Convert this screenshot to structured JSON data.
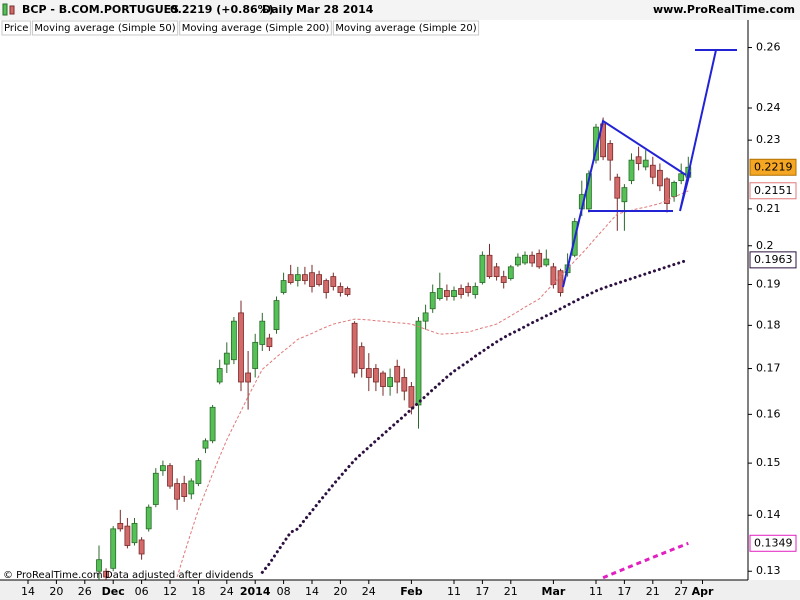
{
  "chart_data": {
    "type": "candlestick",
    "title": "BCP - B.COM.PORTUGUES",
    "subtitle": "0.2219 (+0.86%)",
    "period": "Daily",
    "date": "Mar 28 2014",
    "source": "www.ProRealTime.com",
    "notes": [
      "© ProRealTime.com",
      "Data adjusted after dividends"
    ],
    "log_scale": true,
    "grid": false,
    "ylim": [
      0.1285,
      0.264
    ],
    "yticks": [
      0.13,
      0.14,
      0.15,
      0.16,
      0.17,
      0.18,
      0.19,
      0.2,
      0.21,
      0.23,
      0.24,
      0.26
    ],
    "categories": [
      "14",
      null,
      null,
      null,
      "20",
      null,
      null,
      null,
      "26",
      null,
      null,
      null,
      "Dec",
      null,
      null,
      null,
      "06",
      null,
      null,
      null,
      "12",
      null,
      null,
      null,
      "18",
      null,
      null,
      null,
      "24",
      null,
      null,
      null,
      "2014",
      null,
      null,
      null,
      "08",
      null,
      null,
      null,
      "14",
      null,
      null,
      null,
      "20",
      null,
      null,
      null,
      "24",
      null,
      null,
      null,
      null,
      null,
      "Feb",
      null,
      null,
      null,
      null,
      null,
      "11",
      null,
      null,
      null,
      "17",
      null,
      null,
      null,
      "21",
      null,
      null,
      null,
      null,
      null,
      "Mar",
      null,
      null,
      null,
      null,
      null,
      "11",
      null,
      null,
      null,
      "17",
      null,
      null,
      null,
      "21",
      null,
      null,
      null,
      "27",
      null,
      null,
      "Apr",
      null
    ],
    "series": [
      {
        "name": "Price",
        "up_color": "#55c055",
        "down_color": "#d36a6a",
        "last_label_color": "#f5a623",
        "open": [
          null,
          null,
          null,
          null,
          null,
          null,
          null,
          null,
          null,
          null,
          0.13,
          0.13,
          0.1305,
          0.1385,
          0.138,
          0.135,
          0.1355,
          0.1375,
          0.142,
          0.1485,
          0.1495,
          0.146,
          0.146,
          0.144,
          0.146,
          0.153,
          0.1545,
          0.167,
          0.171,
          0.172,
          0.183,
          0.169,
          0.17,
          0.1755,
          0.177,
          0.179,
          0.188,
          0.1925,
          0.191,
          0.1925,
          0.193,
          0.1925,
          0.191,
          0.192,
          0.1895,
          0.189,
          0.1805,
          0.175,
          0.17,
          0.17,
          0.169,
          0.166,
          0.1705,
          0.168,
          0.166,
          0.162,
          0.181,
          0.184,
          0.1865,
          0.1885,
          0.187,
          0.189,
          0.1895,
          0.1875,
          0.1905,
          0.1975,
          0.1945,
          0.192,
          0.1915,
          0.195,
          0.1955,
          0.1975,
          0.198,
          0.195,
          0.1945,
          0.1935,
          0.193,
          0.1975,
          0.21,
          0.21,
          0.224,
          0.235,
          0.229,
          0.219,
          0.212,
          0.218,
          0.225,
          0.222,
          0.2225,
          0.221,
          0.2185,
          0.2135,
          0.218,
          0.219,
          null,
          null,
          null
        ],
        "high": [
          null,
          null,
          null,
          null,
          null,
          null,
          null,
          null,
          null,
          null,
          0.1345,
          0.1305,
          0.138,
          0.141,
          0.1395,
          0.1395,
          0.136,
          0.142,
          0.149,
          0.1505,
          0.15,
          0.147,
          0.1475,
          0.147,
          0.151,
          0.155,
          0.162,
          0.172,
          0.176,
          0.182,
          0.186,
          0.174,
          0.178,
          0.183,
          0.178,
          0.187,
          0.193,
          0.195,
          0.1945,
          0.1945,
          0.195,
          0.1935,
          0.1915,
          0.193,
          0.1905,
          0.1895,
          0.181,
          0.176,
          0.1735,
          0.171,
          0.1695,
          0.17,
          0.172,
          0.17,
          0.167,
          0.182,
          0.185,
          0.19,
          0.193,
          0.19,
          0.1895,
          0.19,
          0.1905,
          0.1905,
          0.1985,
          0.2005,
          0.1955,
          0.1935,
          0.195,
          0.198,
          0.1985,
          0.1985,
          0.199,
          0.199,
          0.1955,
          0.194,
          0.198,
          0.2075,
          0.218,
          0.221,
          0.235,
          0.237,
          0.23,
          0.22,
          0.217,
          0.226,
          0.228,
          0.227,
          0.225,
          0.223,
          0.219,
          0.218,
          0.223,
          0.225,
          null,
          null,
          null
        ],
        "low": [
          null,
          null,
          null,
          null,
          null,
          null,
          null,
          null,
          null,
          null,
          0.1285,
          0.1285,
          0.13,
          0.137,
          0.134,
          0.1345,
          0.132,
          0.137,
          0.1415,
          0.1475,
          0.145,
          0.141,
          0.1425,
          0.143,
          0.1455,
          0.152,
          0.154,
          0.1665,
          0.169,
          0.171,
          0.165,
          0.161,
          0.168,
          0.174,
          0.174,
          0.178,
          0.1875,
          0.19,
          0.1895,
          0.19,
          0.188,
          0.1895,
          0.1865,
          0.1885,
          0.187,
          0.187,
          0.168,
          0.168,
          0.165,
          0.165,
          0.164,
          0.164,
          0.1645,
          0.163,
          0.16,
          0.157,
          0.179,
          0.183,
          0.186,
          0.186,
          0.186,
          0.1865,
          0.187,
          0.1865,
          0.19,
          0.1915,
          0.191,
          0.189,
          0.191,
          0.1945,
          0.195,
          0.1945,
          0.194,
          0.1945,
          0.189,
          0.187,
          0.192,
          0.197,
          0.208,
          0.209,
          0.223,
          0.224,
          0.218,
          0.204,
          0.204,
          0.217,
          0.221,
          0.221,
          0.217,
          0.215,
          0.209,
          0.212,
          0.217,
          0.218,
          null,
          null,
          null
        ],
        "close": [
          null,
          null,
          null,
          null,
          null,
          null,
          null,
          null,
          null,
          null,
          0.132,
          0.129,
          0.1375,
          0.1375,
          0.1345,
          0.1385,
          0.133,
          0.1415,
          0.148,
          0.1495,
          0.1455,
          0.143,
          0.1435,
          0.1465,
          0.1505,
          0.1545,
          0.1615,
          0.17,
          0.1735,
          0.181,
          0.167,
          0.167,
          0.176,
          0.181,
          0.175,
          0.186,
          0.191,
          0.1905,
          0.1925,
          0.191,
          0.1895,
          0.19,
          0.188,
          0.1895,
          0.188,
          0.1875,
          0.169,
          0.17,
          0.168,
          0.167,
          0.166,
          0.168,
          0.167,
          0.165,
          0.1615,
          0.181,
          0.183,
          0.188,
          0.189,
          0.187,
          0.1885,
          0.1875,
          0.188,
          0.1895,
          0.1975,
          0.192,
          0.192,
          0.1905,
          0.1945,
          0.197,
          0.1975,
          0.1955,
          0.1945,
          0.1965,
          0.19,
          0.188,
          0.195,
          0.2065,
          0.214,
          0.22,
          0.234,
          0.225,
          0.224,
          0.213,
          0.216,
          0.224,
          0.223,
          0.224,
          0.219,
          0.2165,
          0.2115,
          0.2175,
          0.22,
          0.2219,
          null,
          null,
          null
        ]
      },
      {
        "name": "Moving average (Simple 50)",
        "color": "#2b1040",
        "line_style": "dotted",
        "values": [
          null,
          null,
          null,
          null,
          null,
          null,
          null,
          null,
          null,
          null,
          null,
          null,
          null,
          null,
          null,
          null,
          null,
          null,
          null,
          null,
          null,
          null,
          null,
          null,
          null,
          null,
          null,
          null,
          null,
          null,
          null,
          null,
          null,
          0.1298,
          0.1313,
          0.1332,
          0.135,
          0.1369,
          0.1375,
          0.1392,
          0.1408,
          0.1425,
          0.1441,
          0.1458,
          0.1474,
          0.149,
          0.1506,
          0.1519,
          0.1532,
          0.1545,
          0.1558,
          0.1571,
          0.1584,
          0.1597,
          0.1611,
          0.1625,
          0.1639,
          0.1653,
          0.1667,
          0.1681,
          0.1694,
          0.1705,
          0.1716,
          0.1728,
          0.1739,
          0.175,
          0.1761,
          0.1771,
          0.178,
          0.1788,
          0.1797,
          0.1806,
          0.1814,
          0.1823,
          0.1831,
          0.184,
          0.1849,
          0.1858,
          0.1867,
          0.1875,
          0.1884,
          0.1891,
          0.1897,
          0.1903,
          0.1909,
          0.1915,
          0.1921,
          0.1927,
          0.1933,
          0.1939,
          0.1945,
          0.1951,
          0.1957,
          0.1963,
          null,
          null,
          null
        ]
      },
      {
        "name": "Moving average (Simple 200)",
        "color": "#e020c0",
        "line_style": "dashed",
        "values": [
          null,
          null,
          null,
          null,
          null,
          null,
          null,
          null,
          null,
          null,
          null,
          null,
          null,
          null,
          null,
          null,
          null,
          null,
          null,
          null,
          null,
          null,
          null,
          null,
          null,
          null,
          null,
          null,
          null,
          null,
          null,
          null,
          null,
          null,
          null,
          null,
          null,
          null,
          null,
          null,
          null,
          null,
          null,
          null,
          null,
          null,
          null,
          null,
          null,
          null,
          null,
          null,
          null,
          null,
          null,
          null,
          null,
          null,
          null,
          null,
          null,
          null,
          null,
          null,
          null,
          null,
          null,
          null,
          null,
          null,
          null,
          null,
          null,
          null,
          null,
          null,
          null,
          null,
          null,
          null,
          null,
          0.1289,
          0.1294,
          0.1299,
          0.1304,
          0.1309,
          0.1314,
          0.1319,
          0.1324,
          0.1329,
          0.1334,
          0.1339,
          0.1344,
          0.1349,
          null,
          null,
          null
        ]
      },
      {
        "name": "Moving average (Simple 20)",
        "color": "#e07878",
        "line_style": "thin-dashed",
        "values": [
          null,
          null,
          null,
          null,
          null,
          null,
          null,
          null,
          null,
          null,
          null,
          null,
          null,
          null,
          null,
          null,
          null,
          null,
          null,
          null,
          null,
          0.129,
          0.133,
          0.137,
          0.141,
          0.1444,
          0.1479,
          0.1513,
          0.1547,
          0.1577,
          0.1607,
          0.1638,
          0.1668,
          0.1698,
          0.1712,
          0.1726,
          0.174,
          0.1753,
          0.1767,
          0.1774,
          0.1781,
          0.1789,
          0.1796,
          0.1803,
          0.1807,
          0.1811,
          0.1815,
          0.1814,
          0.1813,
          0.1811,
          0.181,
          0.1808,
          0.1806,
          0.1805,
          0.1803,
          0.1797,
          0.1791,
          0.1785,
          0.1779,
          0.178,
          0.1781,
          0.1783,
          0.1784,
          0.1789,
          0.1794,
          0.1798,
          0.1803,
          0.1813,
          0.1823,
          0.1833,
          0.1844,
          0.1854,
          0.1864,
          0.1883,
          0.1902,
          0.1921,
          0.1941,
          0.196,
          0.1979,
          0.2,
          0.2022,
          0.2043,
          0.2065,
          0.2086,
          0.2091,
          0.2096,
          0.2101,
          0.2105,
          0.211,
          0.2115,
          0.2124,
          0.2133,
          0.2142,
          0.2151,
          null,
          null,
          null
        ]
      }
    ]
  }
}
